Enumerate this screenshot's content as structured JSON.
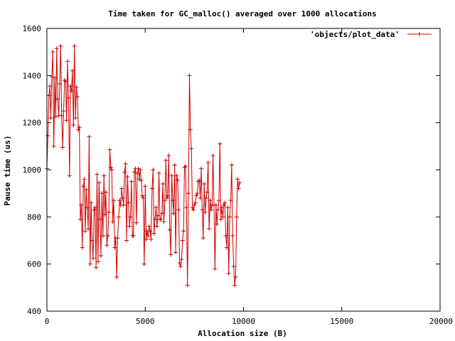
{
  "chart_data": {
    "type": "line",
    "title": "Time taken for GC_malloc() averaged over 1000 allocations",
    "xlabel": "Allocation size (B)",
    "ylabel": "Pause time (us)",
    "xlim": [
      0,
      20000
    ],
    "ylim": [
      400,
      1600
    ],
    "x_ticks": [
      0,
      5000,
      10000,
      15000,
      20000
    ],
    "y_ticks": [
      400,
      600,
      800,
      1000,
      1200,
      1400,
      1600
    ],
    "x_tick_labels": [
      "0",
      "5000",
      "10000",
      "15000",
      "20000"
    ],
    "y_tick_labels": [
      "400",
      "600",
      "800",
      "1000",
      "1200",
      "1400",
      "1600"
    ],
    "grid": false,
    "legend_position": "top-right",
    "series": [
      {
        "name": "'objects/plot_data'",
        "color": "#cc0000",
        "marker": "plus",
        "x_start": 0,
        "x_step": 50,
        "values": [
          1005,
          1145,
          1315,
          1355,
          1220,
          1395,
          1500,
          1100,
          1390,
          1225,
          1515,
          1300,
          1230,
          1365,
          1525,
          1230,
          1095,
          1250,
          1380,
          1375,
          1210,
          1460,
          1305,
          975,
          1355,
          1335,
          1420,
          1190,
          1525,
          1220,
          1350,
          1310,
          1170,
          1180,
          790,
          850,
          670,
          930,
          960,
          740,
          915,
          840,
          750,
          1140,
          600,
          860,
          700,
          625,
          830,
          840,
          585,
          980,
          610,
          945,
          790,
          635,
          900,
          720,
          975,
          810,
          905,
          680,
          720,
          820,
          1085,
          1010,
          1000,
          780,
          870,
          670,
          710,
          545,
          710,
          800,
          870,
          850,
          920,
          880,
          850,
          990,
          1025,
          700,
          970,
          860,
          760,
          800,
          950,
          720,
          720,
          990,
          1005,
          775,
          985,
          1005,
          960,
          1000,
          955,
          890,
          880,
          600,
          930,
          705,
          740,
          720,
          760,
          740,
          705,
          920,
          1000,
          730,
          790,
          840,
          760,
          805,
          985,
          790,
          790,
          815,
          940,
          780,
          870,
          1040,
          880,
          890,
          1060,
          745,
          640,
          975,
          870,
          815,
          1020,
          650,
          975,
          955,
          830,
          605,
          590,
          620,
          700,
          740,
          1010,
          1015,
          840,
          510,
          900,
          1400,
          1170,
          1090,
          840,
          830,
          850,
          860,
          890,
          900,
          950,
          955,
          880,
          1005,
          830,
          710,
          940,
          820,
          880,
          905,
          1030,
          750,
          870,
          830,
          850,
          1060,
          850,
          580,
          850,
          770,
          830,
          870,
          1110,
          790,
          840,
          800,
          850,
          860,
          720,
          670,
          840,
          560,
          800,
          870,
          1020,
          720,
          590,
          510,
          545,
          800,
          960,
          920,
          945
        ]
      }
    ]
  }
}
